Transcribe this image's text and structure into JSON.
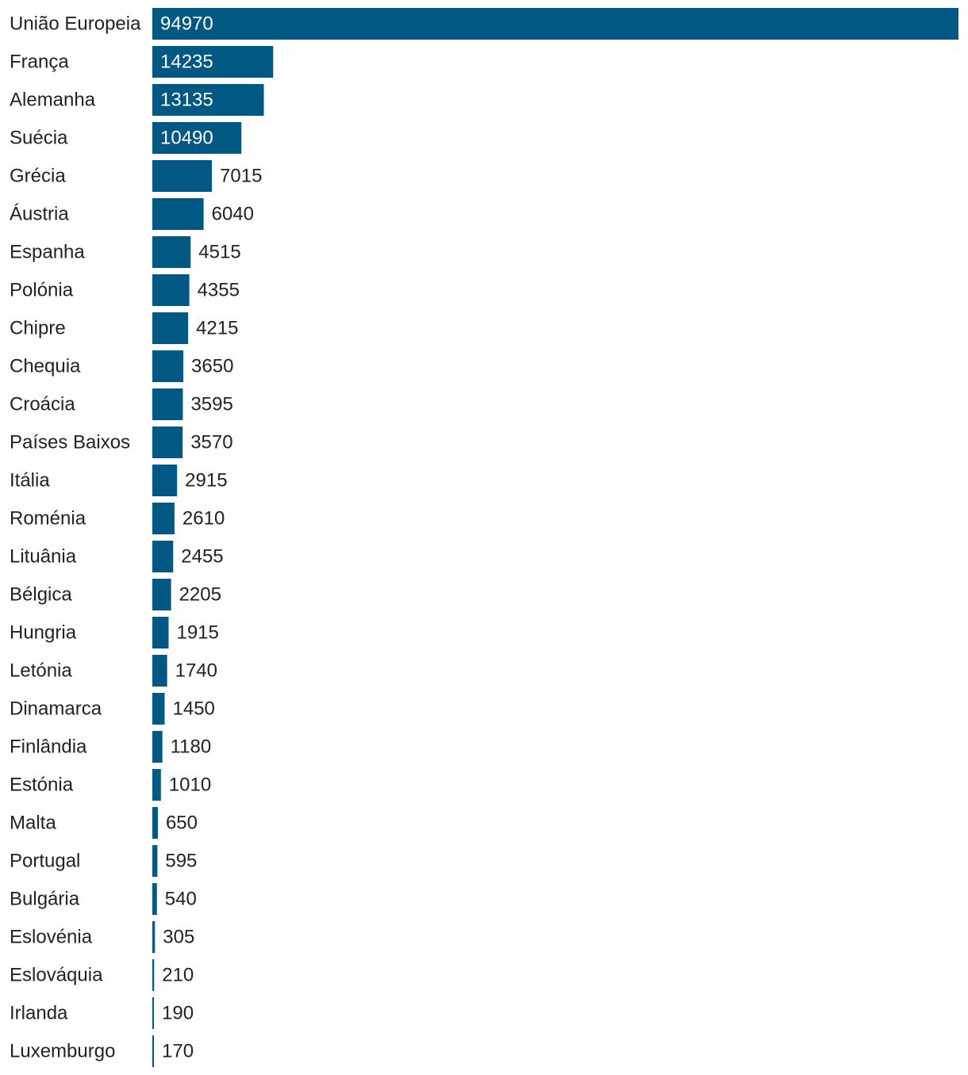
{
  "colors": {
    "bar": "#005883",
    "label_text": "#222222",
    "inside_label_text": "#ffffff",
    "background": "#ffffff"
  },
  "chart_data": {
    "type": "bar",
    "orientation": "horizontal",
    "title": "",
    "xlabel": "",
    "ylabel": "",
    "grid": false,
    "legend": "none",
    "xlim": [
      0,
      94970
    ],
    "categories": [
      "União Europeia",
      "França",
      "Alemanha",
      "Suécia",
      "Grécia",
      "Áustria",
      "Espanha",
      "Polónia",
      "Chipre",
      "Chequia",
      "Croácia",
      "Países Baixos",
      "Itália",
      "Roménia",
      "Lituânia",
      "Bélgica",
      "Hungria",
      "Letónia",
      "Dinamarca",
      "Finlândia",
      "Estónia",
      "Malta",
      "Portugal",
      "Bulgária",
      "Eslovénia",
      "Eslováquia",
      "Irlanda",
      "Luxemburgo"
    ],
    "values": [
      94970,
      14235,
      13135,
      10490,
      7015,
      6040,
      4515,
      4355,
      4215,
      3650,
      3595,
      3570,
      2915,
      2610,
      2455,
      2205,
      1915,
      1740,
      1450,
      1180,
      1010,
      650,
      595,
      540,
      305,
      210,
      190,
      170
    ]
  }
}
